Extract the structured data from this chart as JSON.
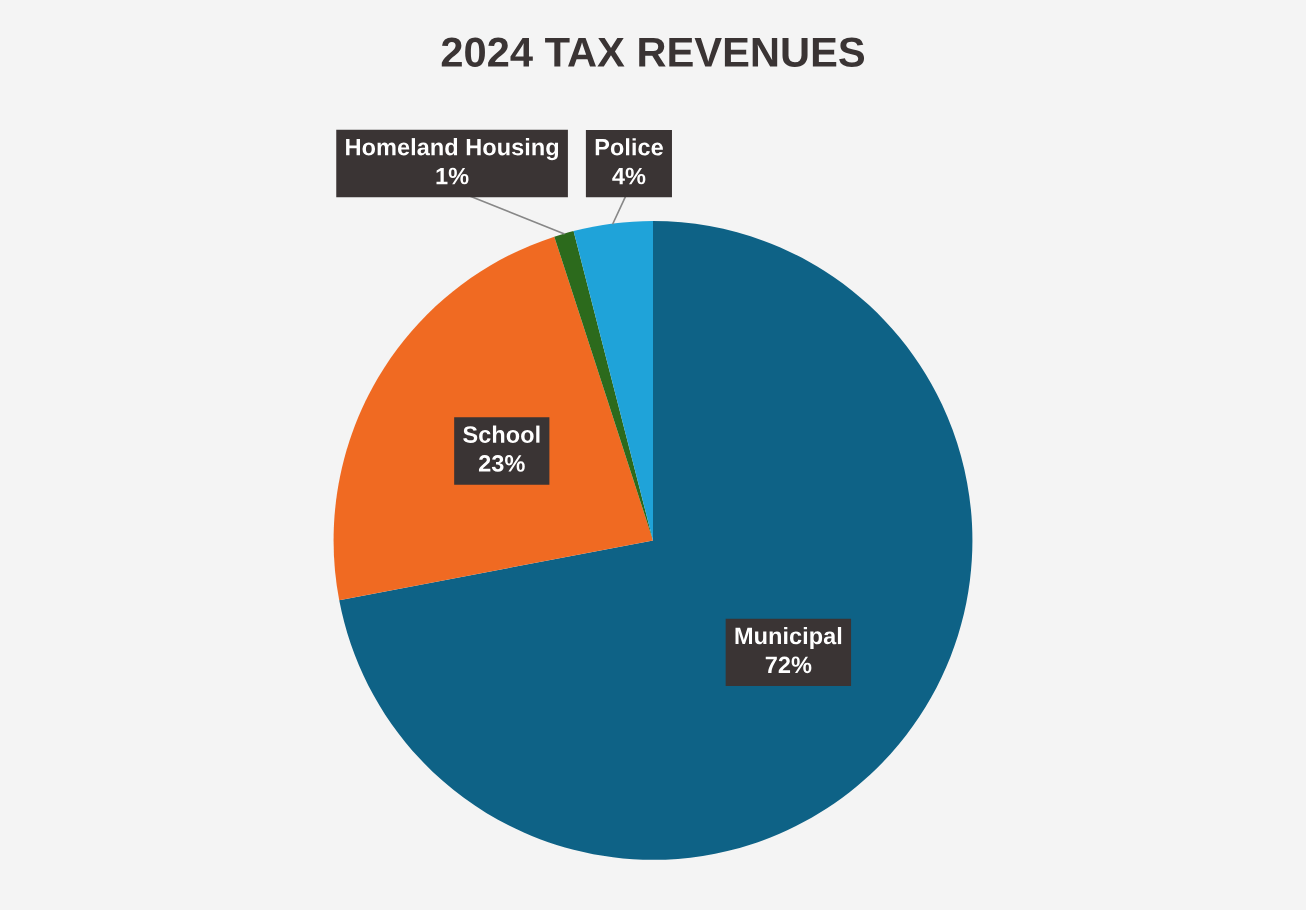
{
  "chart_data": {
    "type": "pie",
    "title": "2024 TAX REVENUES",
    "categories": [
      "Municipal",
      "School",
      "Homeland Housing",
      "Police"
    ],
    "values": [
      72,
      23,
      1,
      4
    ],
    "value_labels": [
      "72%",
      "23%",
      "1%",
      "4%"
    ],
    "colors": [
      "#0e6286",
      "#f06a22",
      "#2c6a1c",
      "#1fa3d9"
    ],
    "legend": false
  }
}
